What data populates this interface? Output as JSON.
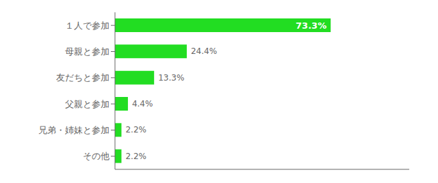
{
  "chart_data": {
    "type": "bar",
    "orientation": "horizontal",
    "categories": [
      "１人で参加",
      "母親と参加",
      "友だちと参加",
      "父親と参加",
      "兄弟・姉妹と参加",
      "その他"
    ],
    "values": [
      73.3,
      24.4,
      13.3,
      4.4,
      2.2,
      2.2
    ],
    "value_labels": [
      "73.3%",
      "24.4%",
      "13.3%",
      "4.4%",
      "2.2%",
      "2.2%"
    ],
    "data_labels": true,
    "color": "#22dd22",
    "xlim": [
      0,
      100
    ],
    "tick_labels": "y",
    "grid": false
  }
}
